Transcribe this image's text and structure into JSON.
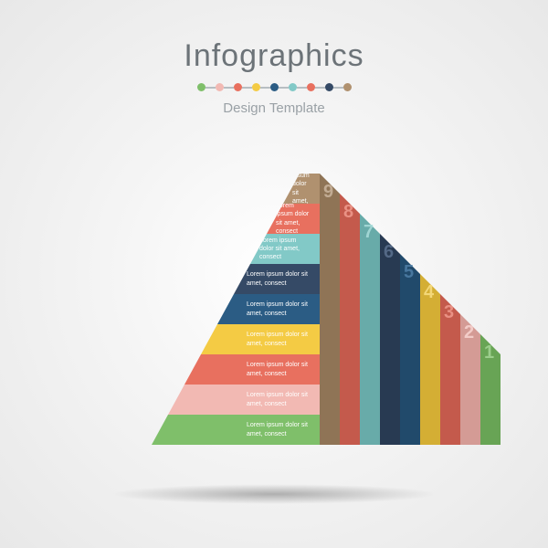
{
  "header": {
    "title": "Infographics",
    "subtitle": "Design Template",
    "dot_colors": [
      "#7fbf6a",
      "#f2b9b3",
      "#e8705f",
      "#f4cb44",
      "#2b5c84",
      "#82c9c7",
      "#e8705f",
      "#354a66",
      "#b0916f"
    ],
    "segment_color": "#b7bec2"
  },
  "pyramid": {
    "type": "infographic",
    "background_color": "#f2f2f2",
    "layer_height": 33,
    "side_width": 30,
    "step": 18,
    "front_base_width": 128,
    "layers": [
      {
        "n": "9",
        "text": "Lorem ipsum dolor sit amet, consect",
        "front": "#b0916f",
        "side": "#8f7456",
        "num": "#cbb69f"
      },
      {
        "n": "8",
        "text": "Lorem ipsum dolor sit amet, consect",
        "front": "#e8705f",
        "side": "#c45a4c",
        "num": "#f09b8e"
      },
      {
        "n": "7",
        "text": "Lorem ipsum dolor sit amet, consect",
        "front": "#82c9c7",
        "side": "#68aba9",
        "num": "#aadddb"
      },
      {
        "n": "6",
        "text": "Lorem ipsum dolor sit amet, consect",
        "front": "#354a66",
        "side": "#283a52",
        "num": "#5c7290"
      },
      {
        "n": "5",
        "text": "Lorem ipsum dolor sit amet, consect",
        "front": "#2b5c84",
        "side": "#214a6b",
        "num": "#4f80a8"
      },
      {
        "n": "4",
        "text": "Lorem ipsum dolor sit amet, consect",
        "front": "#f4cb44",
        "side": "#d4ae34",
        "num": "#f9df85"
      },
      {
        "n": "3",
        "text": "Lorem ipsum dolor sit amet, consect",
        "front": "#e8705f",
        "side": "#c45a4c",
        "num": "#f09b8e"
      },
      {
        "n": "2",
        "text": "Lorem ipsum dolor sit amet, consect",
        "front": "#f2b9b3",
        "side": "#d49b95",
        "num": "#f8d5d1"
      },
      {
        "n": "1",
        "text": "Lorem ipsum dolor sit amet, consect",
        "front": "#7fbf6a",
        "side": "#68a455",
        "num": "#a6d696"
      }
    ]
  }
}
